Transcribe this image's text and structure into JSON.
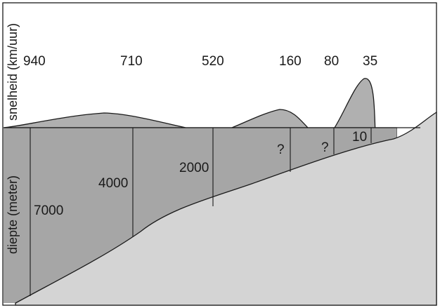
{
  "axes": {
    "speed_label": "snelheid (km/uur)",
    "depth_label": "diepte (meter)"
  },
  "speeds": [
    "940",
    "710",
    "520",
    "160",
    "80",
    "35"
  ],
  "depths": [
    "7000",
    "4000",
    "2000",
    "?",
    "?",
    "10"
  ],
  "colors": {
    "wave": "#b0b0b0",
    "water": "#a6a6a6",
    "seabed": "#d4d4d4",
    "line": "#1a1a1a"
  }
}
